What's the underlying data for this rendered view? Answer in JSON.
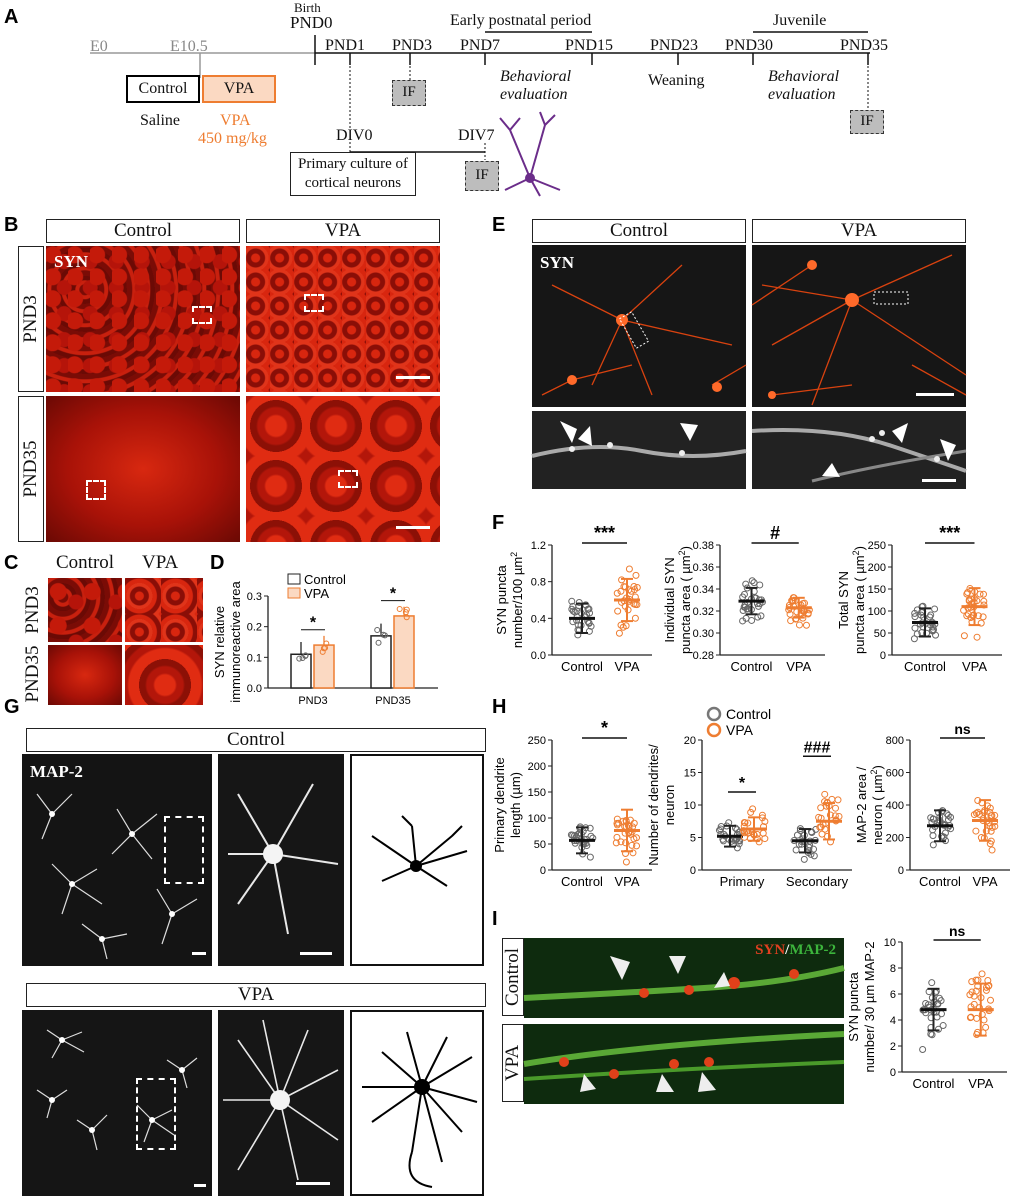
{
  "panels": {
    "a": "A",
    "b": "B",
    "c": "C",
    "d": "D",
    "e": "E",
    "f": "F",
    "g": "G",
    "h": "H",
    "i": "I"
  },
  "timeline": {
    "birth": "Birth",
    "pnd0": "PND0",
    "e0": "E0",
    "e105": "E10.5",
    "pnd1": "PND1",
    "pnd3": "PND3",
    "pnd7": "PND7",
    "pnd15": "PND15",
    "pnd23": "PND23",
    "pnd30": "PND30",
    "pnd35": "PND35",
    "early": "Early postnatal period",
    "juvenile": "Juvenile",
    "behav1a": "Behavioral",
    "behav1b": "evaluation",
    "weaning": "Weaning",
    "behav2a": "Behavioral",
    "behav2b": "evaluation",
    "control_box": "Control",
    "vpa_box": "VPA",
    "saline": "Saline",
    "vpa_dose1": "VPA",
    "vpa_dose2": "450 mg/kg",
    "div0": "DIV0",
    "div7": "DIV7",
    "culture1": "Primary culture of",
    "culture2": "cortical neurons",
    "if": "IF"
  },
  "labels": {
    "control": "Control",
    "vpa": "VPA",
    "syn": "SYN",
    "map2": "MAP-2",
    "pnd3": "PND3",
    "pnd35": "PND35",
    "syn_word": "SYN",
    "slash": "/",
    "map2_word": "MAP-2"
  },
  "colors": {
    "control": "#555555",
    "vpa": "#ee7d31",
    "vpa_fill": "#fbd9c2"
  },
  "chart_d": {
    "type": "bar",
    "categories": [
      "PND3",
      "PND35"
    ],
    "ylabel1": "SYN relative",
    "ylabel2": "immunoreactive area",
    "ylim": [
      0,
      0.3
    ],
    "yticks": [
      "0.0",
      "0.1",
      "0.2",
      "0.3"
    ],
    "series": [
      {
        "name": "Control",
        "values": [
          0.11,
          0.17
        ]
      },
      {
        "name": "VPA",
        "values": [
          0.14,
          0.235
        ]
      }
    ],
    "sig": [
      "*",
      "*"
    ]
  },
  "chart_f1": {
    "type": "scatter",
    "ylabel1": "SYN puncta",
    "ylabel2": "number/100 µm",
    "sup": "2",
    "ylim": [
      0.0,
      1.2
    ],
    "yticks": [
      "0.0",
      "0.4",
      "0.8",
      "1.2"
    ],
    "categories": [
      "Control",
      "VPA"
    ],
    "mean": [
      0.4,
      0.6
    ],
    "sd": [
      0.16,
      0.23
    ],
    "sig": "***"
  },
  "chart_f2": {
    "type": "scatter",
    "ylabel1": "Individual SYN",
    "ylabel2": "puncta area ( µm",
    "sup": "2",
    ")": ")",
    "ylim": [
      0.28,
      0.38
    ],
    "yticks": [
      "0.28",
      "0.30",
      "0.32",
      "0.34",
      "0.36",
      "0.38"
    ],
    "categories": [
      "Control",
      "VPA"
    ],
    "mean": [
      0.329,
      0.323
    ],
    "sd": [
      0.012,
      0.009
    ],
    "sig": "#"
  },
  "chart_f3": {
    "type": "scatter",
    "ylabel1": "Total SYN",
    "ylabel2": "puncta area ( µm",
    "sup": "2",
    "ylim": [
      0,
      250
    ],
    "yticks": [
      "0",
      "50",
      "100",
      "150",
      "200",
      "250"
    ],
    "categories": [
      "Control",
      "VPA"
    ],
    "mean": [
      74,
      110
    ],
    "sd": [
      32,
      42
    ],
    "sig": "***"
  },
  "chart_h1": {
    "type": "scatter",
    "ylabel1": "Primary dendrite",
    "ylabel2": "length (µm)",
    "ylim": [
      0,
      250
    ],
    "yticks": [
      "0",
      "50",
      "100",
      "150",
      "200",
      "250"
    ],
    "categories": [
      "Control",
      "VPA"
    ],
    "mean": [
      57,
      76
    ],
    "sd": [
      25,
      40
    ],
    "sig": "*"
  },
  "chart_h2": {
    "type": "scatter",
    "ylabel1": "Number of dendrites/",
    "ylabel2": "neuron",
    "ylim": [
      0,
      20
    ],
    "yticks": [
      "0",
      "5",
      "10",
      "15",
      "20"
    ],
    "groups": [
      "Primary",
      "Secondary"
    ],
    "legend": [
      "Control",
      "VPA"
    ],
    "mean": [
      [
        5.2,
        6.3
      ],
      [
        4.5,
        7.5
      ]
    ],
    "sd": [
      [
        1.6,
        1.8
      ],
      [
        1.8,
        2.8
      ]
    ],
    "sig": [
      "*",
      "###"
    ]
  },
  "chart_h3": {
    "type": "scatter",
    "ylabel1": "MAP-2 area /",
    "ylabel2": "neuron ( µm",
    "sup": "2",
    "ylim": [
      0,
      800
    ],
    "yticks": [
      "0",
      "200",
      "400",
      "600",
      "800"
    ],
    "categories": [
      "Control",
      "VPA"
    ],
    "mean": [
      272,
      305
    ],
    "sd": [
      95,
      125
    ],
    "sig": "ns"
  },
  "chart_i": {
    "type": "scatter",
    "ylabel1": "SYN puncta",
    "ylabel2": "number/ 30 µm MAP-2",
    "ylim": [
      0,
      10
    ],
    "yticks": [
      "0",
      "2",
      "4",
      "6",
      "8",
      "10"
    ],
    "categories": [
      "Control",
      "VPA"
    ],
    "mean": [
      4.8,
      4.8
    ],
    "sd": [
      1.6,
      2.0
    ],
    "sig": "ns"
  }
}
